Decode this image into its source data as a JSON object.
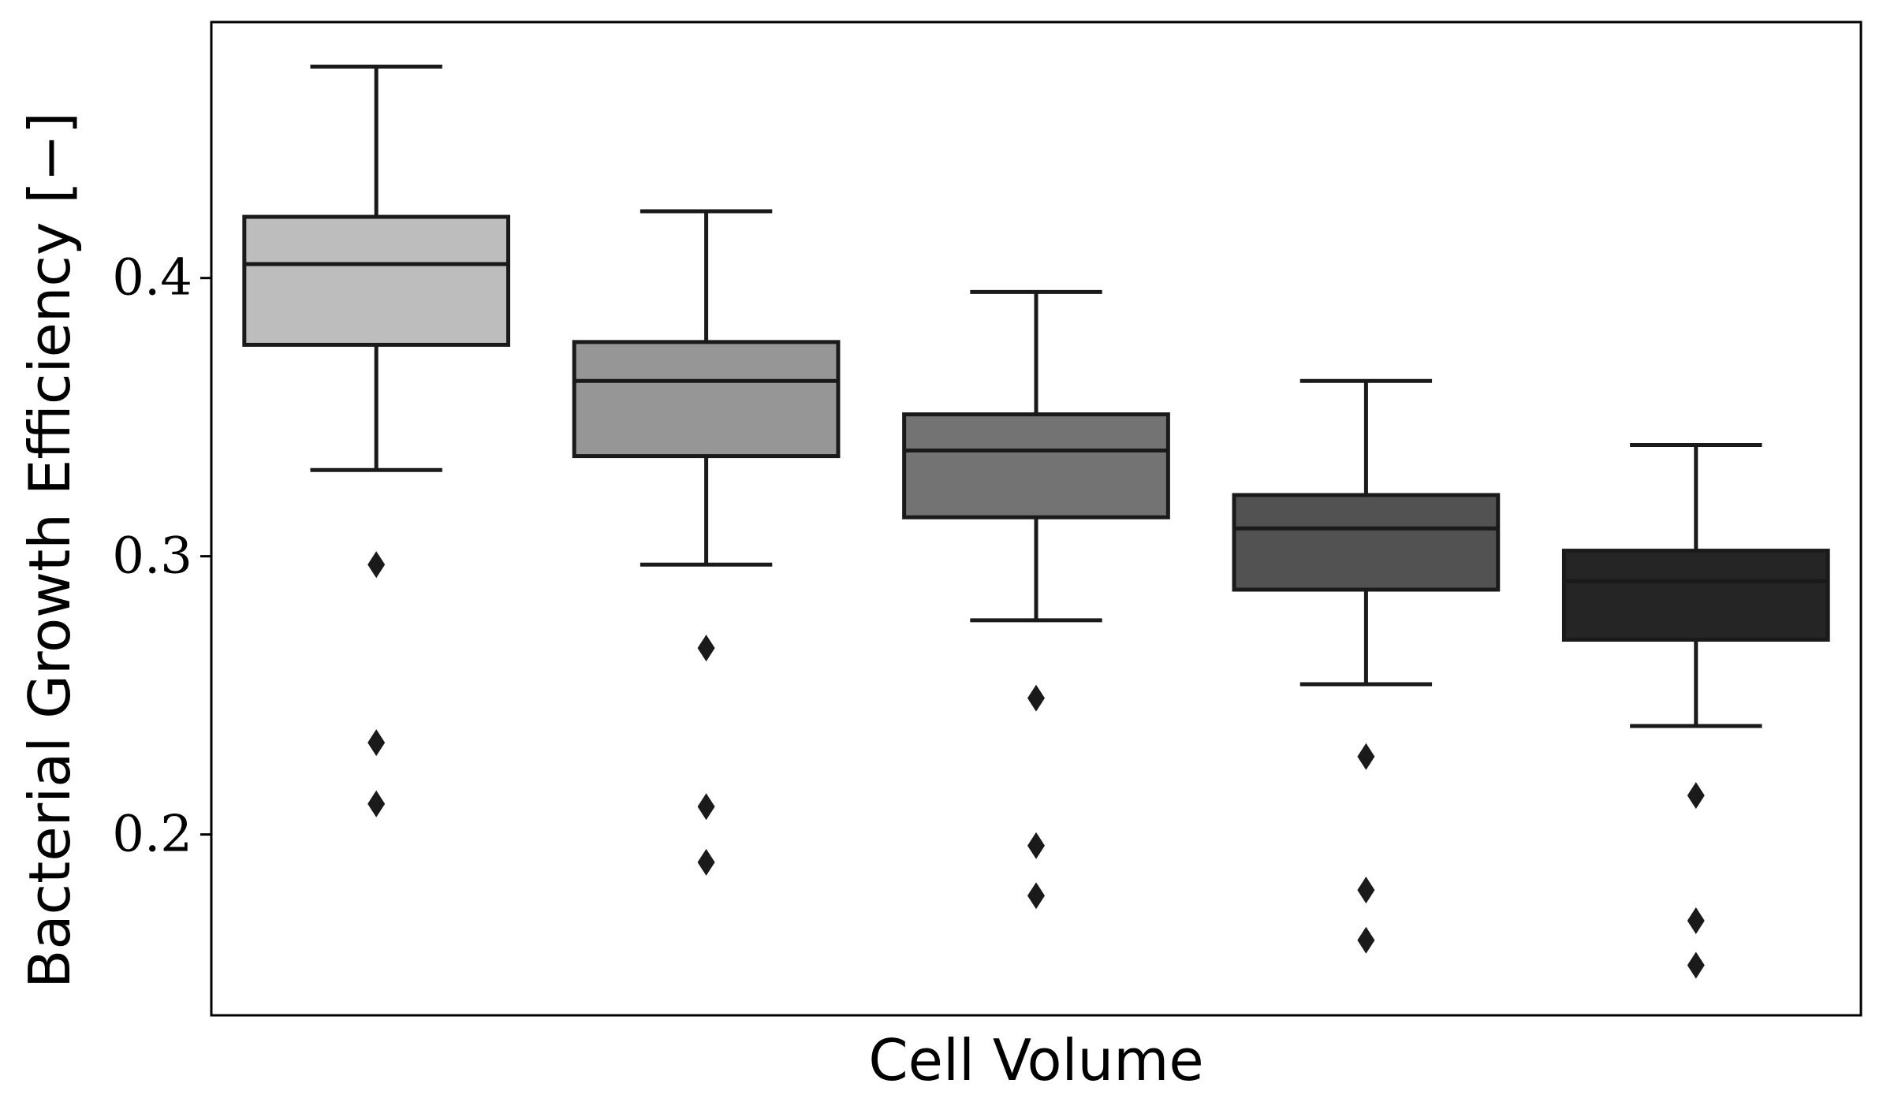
{
  "chart_data": {
    "type": "box",
    "title": "",
    "xlabel": "Cell Volume",
    "ylabel": "Bacterial Growth Efficiency [−]",
    "ylim": [
      0.135,
      0.492
    ],
    "yticks": [
      0.2,
      0.3,
      0.4
    ],
    "ytick_labels": [
      "0.2",
      "0.3",
      "0.4"
    ],
    "grid": false,
    "legend": "none",
    "series": [
      {
        "q1": 0.376,
        "median": 0.405,
        "q3": 0.422,
        "whisker_low": 0.331,
        "whisker_high": 0.476,
        "outliers": [
          0.297,
          0.233,
          0.211
        ],
        "color": "#bdbdbd"
      },
      {
        "q1": 0.336,
        "median": 0.363,
        "q3": 0.377,
        "whisker_low": 0.297,
        "whisker_high": 0.424,
        "outliers": [
          0.267,
          0.21,
          0.19
        ],
        "color": "#969696"
      },
      {
        "q1": 0.314,
        "median": 0.338,
        "q3": 0.351,
        "whisker_low": 0.277,
        "whisker_high": 0.395,
        "outliers": [
          0.249,
          0.196,
          0.178
        ],
        "color": "#737373"
      },
      {
        "q1": 0.288,
        "median": 0.31,
        "q3": 0.322,
        "whisker_low": 0.254,
        "whisker_high": 0.363,
        "outliers": [
          0.228,
          0.18,
          0.162
        ],
        "color": "#525252"
      },
      {
        "q1": 0.27,
        "median": 0.291,
        "q3": 0.302,
        "whisker_low": 0.239,
        "whisker_high": 0.34,
        "outliers": [
          0.214,
          0.169,
          0.153
        ],
        "color": "#252525"
      }
    ]
  }
}
